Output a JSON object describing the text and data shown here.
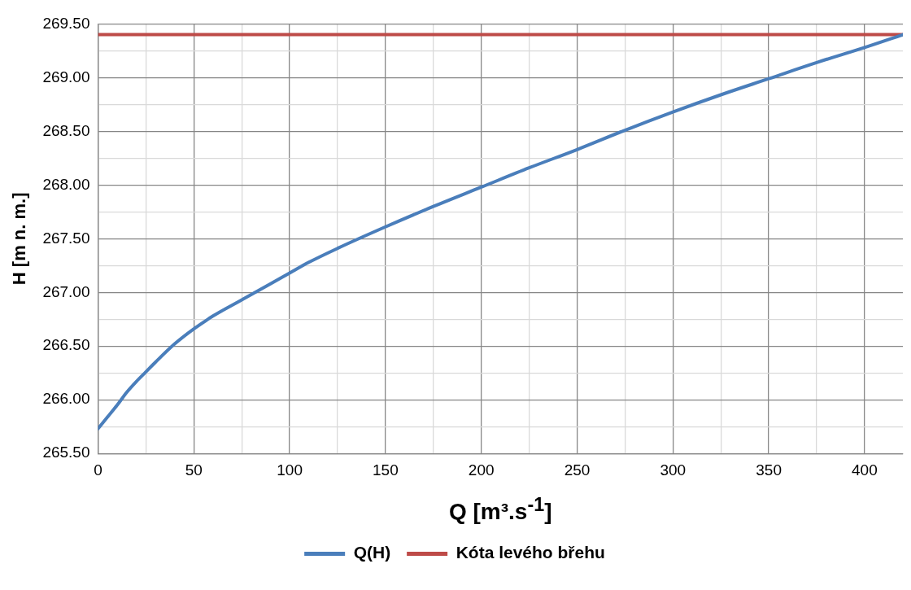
{
  "chart_data": {
    "type": "line",
    "xlabel": "Q [m³.s$^{-1}$]",
    "ylabel": "H [m n. m.]",
    "x": [
      0,
      5,
      10,
      15,
      20,
      25,
      30,
      40,
      50,
      60,
      75,
      90,
      100,
      110,
      125,
      150,
      175,
      200,
      225,
      250,
      275,
      300,
      325,
      350,
      375,
      400,
      420
    ],
    "series": [
      {
        "name": "Q(H)",
        "color": "#4a7ebb",
        "values": [
          265.73,
          265.84,
          265.95,
          266.07,
          266.17,
          266.26,
          266.35,
          266.52,
          266.66,
          266.78,
          266.93,
          267.08,
          267.18,
          267.28,
          267.41,
          267.61,
          267.8,
          267.98,
          268.16,
          268.33,
          268.51,
          268.68,
          268.84,
          268.99,
          269.14,
          269.28,
          269.4
        ]
      }
    ],
    "ref_lines": [
      {
        "axis": "y",
        "value": 269.4,
        "label": "Kóta levého břehu",
        "color": "#be4b48"
      }
    ],
    "xlim": [
      0,
      420
    ],
    "xticks": [
      0,
      {
        "value": 25,
        "label": null
      },
      50,
      {
        "value": 75,
        "label": null
      },
      100,
      {
        "value": 125,
        "label": null
      },
      150,
      {
        "value": 175,
        "label": null
      },
      200,
      {
        "value": 225,
        "label": null
      },
      250,
      {
        "value": 275,
        "label": null
      },
      300,
      {
        "value": 325,
        "label": null
      },
      350,
      {
        "value": 375,
        "label": null
      },
      400
    ],
    "ylim": [
      265.5,
      269.5
    ],
    "yticks": [
      {
        "value": 265.5,
        "label": "265.50"
      },
      {
        "value": 265.75,
        "label": null
      },
      {
        "value": 266,
        "label": "266.00"
      },
      {
        "value": 266.25,
        "label": null
      },
      {
        "value": 266.5,
        "label": "266.50"
      },
      {
        "value": 266.75,
        "label": null
      },
      {
        "value": 267,
        "label": "267.00"
      },
      {
        "value": 267.25,
        "label": null
      },
      {
        "value": 267.5,
        "label": "267.50"
      },
      {
        "value": 267.75,
        "label": null
      },
      {
        "value": 268,
        "label": "268.00"
      },
      {
        "value": 268.25,
        "label": null
      },
      {
        "value": 268.5,
        "label": "268.50"
      },
      {
        "value": 268.75,
        "label": null
      },
      {
        "value": 269,
        "label": "269.00"
      },
      {
        "value": 269.25,
        "label": null
      },
      {
        "value": 269.5,
        "label": "269.50"
      }
    ],
    "grid": true,
    "legend": "bottom",
    "marker": "none",
    "line_style": "solid"
  }
}
